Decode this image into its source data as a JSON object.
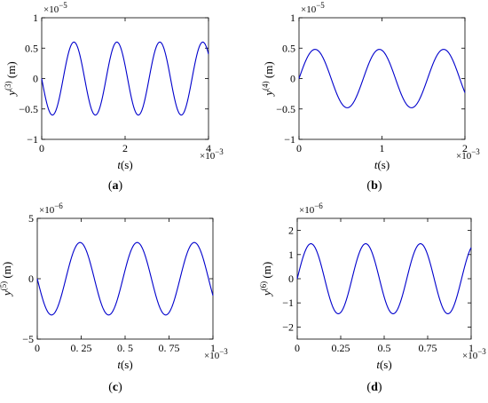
{
  "charts": [
    {
      "id": "a",
      "caption": "a",
      "xlabel": "t",
      "xunit": "(s)",
      "ylabel_base": "y",
      "ylabel_sup": "(3)",
      "ylabel_unit": "(m)",
      "x_exponent_label": "×10",
      "x_exponent": "−3",
      "y_exponent_label": "×10",
      "y_exponent": "−5",
      "x_ticks": [
        {
          "v": 0,
          "label": "0"
        },
        {
          "v": 2,
          "label": "2"
        },
        {
          "v": 4,
          "label": "4"
        }
      ],
      "y_ticks": [
        {
          "v": -1,
          "label": "−1"
        },
        {
          "v": -0.5,
          "label": "−0.5"
        },
        {
          "v": 0,
          "label": "0"
        },
        {
          "v": 0.5,
          "label": "0.5"
        },
        {
          "v": 1,
          "label": "1"
        }
      ]
    },
    {
      "id": "b",
      "caption": "b",
      "xlabel": "t",
      "xunit": "(s)",
      "ylabel_base": "y",
      "ylabel_sup": "(4)",
      "ylabel_unit": "(m)",
      "x_exponent_label": "×10",
      "x_exponent": "−3",
      "y_exponent_label": "×10",
      "y_exponent": "−5",
      "x_ticks": [
        {
          "v": 0,
          "label": "0"
        },
        {
          "v": 1,
          "label": "1"
        },
        {
          "v": 2,
          "label": "2"
        }
      ],
      "y_ticks": [
        {
          "v": -1,
          "label": "−1"
        },
        {
          "v": -0.5,
          "label": "−0.5"
        },
        {
          "v": 0,
          "label": "0"
        },
        {
          "v": 0.5,
          "label": "0.5"
        },
        {
          "v": 1,
          "label": "1"
        }
      ]
    },
    {
      "id": "c",
      "caption": "c",
      "xlabel": "t",
      "xunit": "(s)",
      "ylabel_base": "y",
      "ylabel_sup": "(5)",
      "ylabel_unit": "(m)",
      "x_exponent_label": "×10",
      "x_exponent": "−3",
      "y_exponent_label": "×10",
      "y_exponent": "−6",
      "x_ticks": [
        {
          "v": 0,
          "label": "0"
        },
        {
          "v": 0.25,
          "label": "0. 25"
        },
        {
          "v": 0.5,
          "label": "0. 5"
        },
        {
          "v": 0.75,
          "label": "0. 75"
        },
        {
          "v": 1,
          "label": "1"
        }
      ],
      "y_ticks": [
        {
          "v": -5,
          "label": "−5"
        },
        {
          "v": 0,
          "label": "0"
        },
        {
          "v": 5,
          "label": "5"
        }
      ]
    },
    {
      "id": "d",
      "caption": "d",
      "xlabel": "t",
      "xunit": "(s)",
      "ylabel_base": "y",
      "ylabel_sup": "(6)",
      "ylabel_unit": "(m)",
      "x_exponent_label": "×10",
      "x_exponent": "−3",
      "y_exponent_label": "×10",
      "y_exponent": "−6",
      "x_ticks": [
        {
          "v": 0,
          "label": "0"
        },
        {
          "v": 0.25,
          "label": "0.25"
        },
        {
          "v": 0.5,
          "label": "0.5"
        },
        {
          "v": 0.75,
          "label": "0.75"
        },
        {
          "v": 1,
          "label": "1"
        }
      ],
      "y_ticks": [
        {
          "v": -2,
          "label": "−2"
        },
        {
          "v": -1,
          "label": "−1"
        },
        {
          "v": 0,
          "label": "0"
        },
        {
          "v": 1,
          "label": "1"
        },
        {
          "v": 2,
          "label": "2"
        }
      ]
    }
  ],
  "chart_data": [
    {
      "type": "line",
      "panel": "a",
      "xlim": [
        0,
        4
      ],
      "ylim": [
        -1,
        1
      ],
      "x_scale": "×10^-3",
      "y_scale": "×10^-5",
      "grid": false,
      "series": [
        {
          "color": "#0000cc",
          "waveform": "sine",
          "amplitude": 0.6,
          "period": 1.03,
          "phase_sign": -1,
          "x": [
            0,
            0.26,
            0.77,
            1.29,
            1.8,
            2.32,
            2.83,
            3.35,
            3.86,
            4.0
          ],
          "y": [
            0,
            -0.6,
            0.6,
            -0.6,
            0.6,
            -0.6,
            0.6,
            -0.6,
            0.6,
            0.48
          ]
        }
      ]
    },
    {
      "type": "line",
      "panel": "b",
      "xlim": [
        0,
        2
      ],
      "ylim": [
        -1,
        1
      ],
      "x_scale": "×10^-3",
      "y_scale": "×10^-5",
      "grid": false,
      "series": [
        {
          "color": "#0000cc",
          "waveform": "sine",
          "amplitude": 0.48,
          "period": 0.775,
          "phase_sign": 1,
          "x": [
            0,
            0.19,
            0.58,
            0.97,
            1.36,
            1.74,
            2.0
          ],
          "y": [
            0,
            0.48,
            -0.48,
            0.48,
            -0.48,
            0.48,
            -0.2
          ]
        }
      ]
    },
    {
      "type": "line",
      "panel": "c",
      "xlim": [
        0,
        1
      ],
      "ylim": [
        -5,
        5
      ],
      "x_scale": "×10^-3",
      "y_scale": "×10^-6",
      "grid": false,
      "series": [
        {
          "color": "#0000cc",
          "waveform": "sine",
          "amplitude": 3.0,
          "period": 0.325,
          "phase_sign": -1,
          "x": [
            0,
            0.08,
            0.24,
            0.41,
            0.57,
            0.73,
            0.89,
            1.0
          ],
          "y": [
            0,
            -3.0,
            3.0,
            -3.0,
            3.0,
            -3.0,
            3.0,
            -2.0
          ]
        }
      ]
    },
    {
      "type": "line",
      "panel": "d",
      "xlim": [
        0,
        1
      ],
      "ylim": [
        -2.5,
        2.5
      ],
      "x_scale": "×10^-3",
      "y_scale": "×10^-6",
      "grid": false,
      "series": [
        {
          "color": "#0000cc",
          "waveform": "sine",
          "amplitude": 1.45,
          "period": 0.315,
          "phase_sign": 1,
          "x": [
            0,
            0.08,
            0.24,
            0.39,
            0.55,
            0.71,
            0.87,
            1.0
          ],
          "y": [
            0,
            1.45,
            -1.45,
            1.45,
            -1.45,
            1.45,
            -1.45,
            1.25
          ]
        }
      ]
    }
  ]
}
